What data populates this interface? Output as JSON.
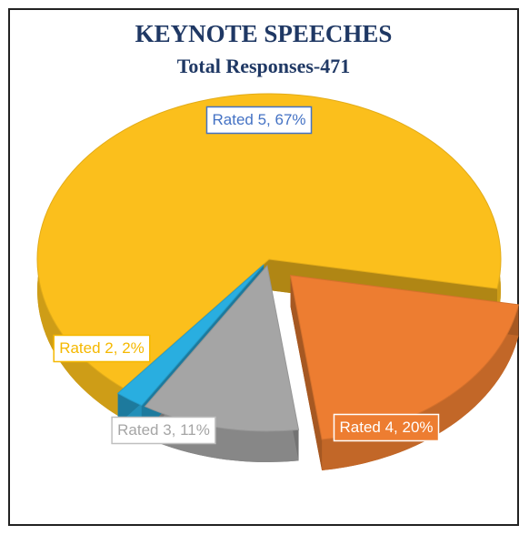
{
  "chart_data": {
    "type": "pie",
    "title": "KEYNOTE SPEECHES",
    "subtitle": "Total Responses-471",
    "categories": [
      "Rated 5",
      "Rated 4",
      "Rated 3",
      "Rated 2"
    ],
    "values": [
      67,
      20,
      11,
      2
    ],
    "value_labels": [
      "67%",
      "20%",
      "11%",
      "2%"
    ],
    "colors": [
      "#fbbf1c",
      "#ed7d31",
      "#a5a5a5",
      "#29aee0"
    ]
  }
}
